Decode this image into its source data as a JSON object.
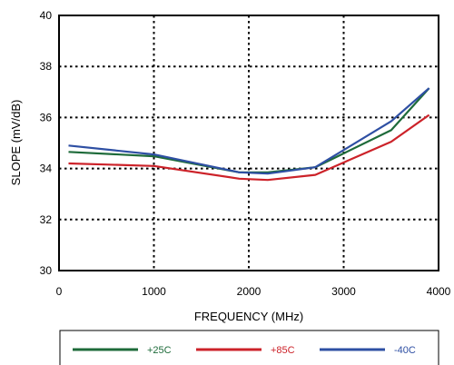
{
  "chart_data": {
    "type": "line",
    "title": "",
    "xlabel": "FREQUENCY (MHz)",
    "ylabel": "SLOPE (mV/dB)",
    "xlim": [
      0,
      4000
    ],
    "ylim": [
      30,
      40
    ],
    "xticks": [
      0,
      1000,
      2000,
      3000,
      4000
    ],
    "yticks": [
      30,
      32,
      34,
      36,
      38,
      40
    ],
    "xtick_labels": [
      "0",
      "1000",
      "2000",
      "3000",
      "4000"
    ],
    "ytick_labels": [
      "30",
      "32",
      "34",
      "36",
      "38",
      "40"
    ],
    "grid": true,
    "grid_style": "dotted",
    "legend_position": "bottom",
    "series": [
      {
        "name": "+25C",
        "color": "#1e6b3a",
        "x": [
          100,
          1000,
          1900,
          2200,
          2700,
          3500,
          3900
        ],
        "y": [
          34.65,
          34.48,
          33.85,
          33.85,
          34.05,
          35.5,
          37.15
        ]
      },
      {
        "name": "+85C",
        "color": "#cc2229",
        "x": [
          100,
          1000,
          1900,
          2200,
          2700,
          3500,
          3900
        ],
        "y": [
          34.2,
          34.1,
          33.6,
          33.55,
          33.75,
          35.05,
          36.1
        ]
      },
      {
        "name": "-40C",
        "color": "#2e4fa3",
        "x": [
          100,
          1000,
          1900,
          2200,
          2700,
          3500,
          3900
        ],
        "y": [
          34.9,
          34.55,
          33.85,
          33.8,
          34.05,
          35.85,
          37.15
        ]
      }
    ]
  }
}
